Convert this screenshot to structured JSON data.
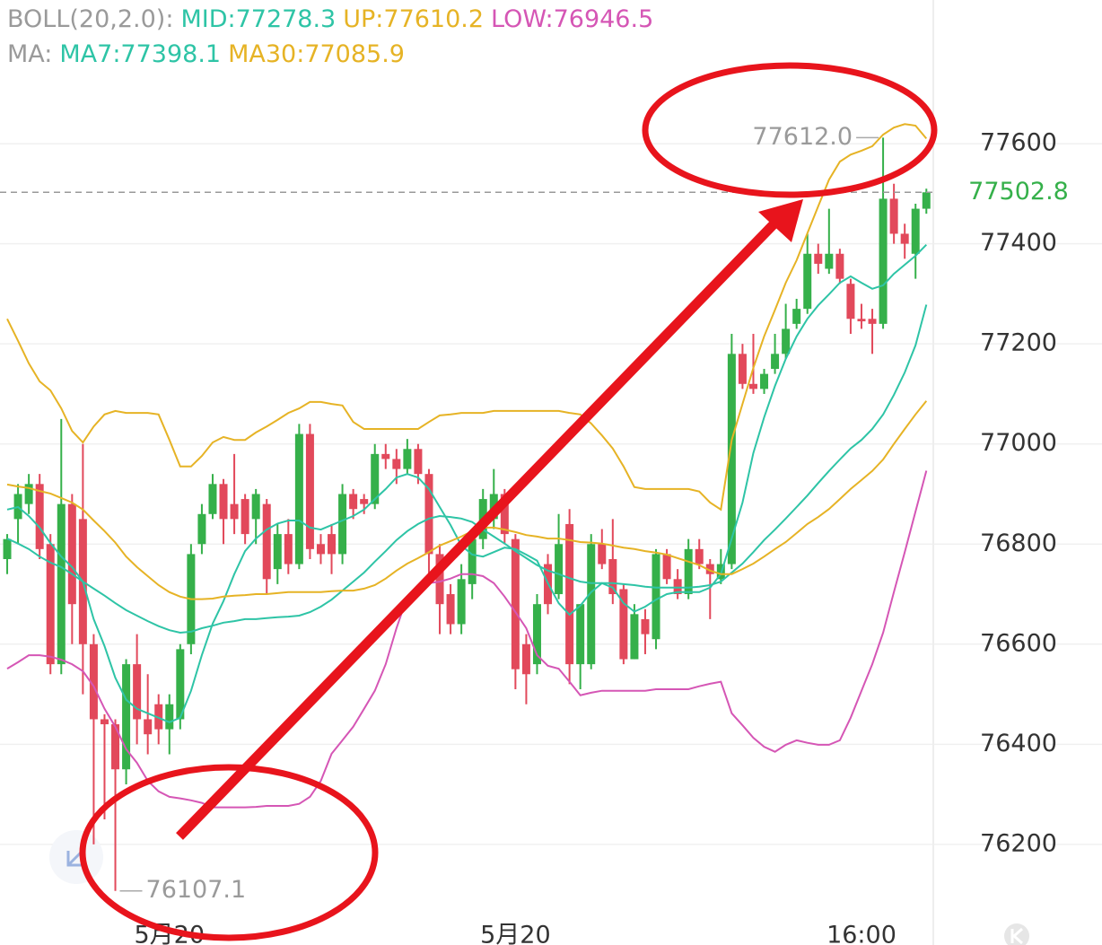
{
  "chart_data": {
    "type": "candlestick",
    "up_color": "#35b04a",
    "down_color": "#e2495b",
    "grid": true,
    "ylim": [
      75999,
      77887
    ],
    "yticks": [
      76200,
      76400,
      76600,
      76800,
      77000,
      77200,
      77400,
      77600
    ],
    "categories": [
      null,
      null,
      null,
      null,
      null,
      null,
      null,
      null,
      null,
      null,
      null,
      null,
      null,
      null,
      null,
      "5月20",
      null,
      null,
      null,
      null,
      null,
      null,
      null,
      null,
      null,
      null,
      null,
      null,
      null,
      null,
      null,
      null,
      null,
      null,
      null,
      null,
      null,
      null,
      null,
      null,
      null,
      null,
      null,
      null,
      null,
      null,
      null,
      "5月20",
      null,
      null,
      null,
      null,
      null,
      null,
      null,
      null,
      null,
      null,
      null,
      null,
      null,
      null,
      null,
      null,
      null,
      null,
      null,
      null,
      null,
      null,
      null,
      null,
      null,
      null,
      null,
      null,
      null,
      null,
      null,
      "16:00",
      null,
      null,
      null,
      null,
      null,
      null
    ],
    "open": [
      76770,
      76850,
      76880,
      76920,
      76800,
      76560,
      76880,
      76850,
      76600,
      76450,
      76440,
      76350,
      76560,
      76450,
      76480,
      76430,
      76450,
      76600,
      76800,
      76860,
      76920,
      76880,
      76890,
      76850,
      76880,
      76750,
      76820,
      76760,
      77020,
      76800,
      76820,
      76780,
      76900,
      76890,
      76880,
      76980,
      76970,
      76950,
      76990,
      76940,
      76780,
      76700,
      76640,
      76720,
      76810,
      76850,
      76900,
      76810,
      76600,
      76560,
      76760,
      76700,
      76840,
      76560,
      76560,
      76800,
      76770,
      76710,
      76570,
      76650,
      76610,
      76780,
      76730,
      76700,
      76790,
      76760,
      76730,
      76760,
      77180,
      77120,
      77110,
      77150,
      77180,
      77240,
      77270,
      77380,
      77350,
      77380,
      77320,
      77250,
      77250,
      77240,
      77490,
      77420,
      77380,
      77470
    ],
    "high": [
      76820,
      76920,
      76940,
      76940,
      76820,
      77050,
      76900,
      77000,
      76620,
      76460,
      76450,
      76570,
      76620,
      76540,
      76500,
      76500,
      76600,
      76800,
      76880,
      76940,
      76930,
      76980,
      76900,
      76910,
      76890,
      76840,
      76850,
      77040,
      77040,
      76820,
      76840,
      76920,
      76910,
      76900,
      77000,
      77000,
      76990,
      77010,
      77000,
      76950,
      76800,
      76720,
      76760,
      76830,
      76910,
      76950,
      76910,
      76820,
      76620,
      76700,
      76780,
      76860,
      76870,
      76680,
      76820,
      76830,
      76850,
      76720,
      76680,
      76670,
      76790,
      76790,
      76750,
      76810,
      76810,
      76770,
      76790,
      77220,
      77200,
      77220,
      77150,
      77220,
      77280,
      77290,
      77420,
      77400,
      77470,
      77390,
      77330,
      77280,
      77270,
      77612,
      77520,
      77440,
      77480,
      77510
    ],
    "low": [
      76740,
      76800,
      76860,
      76770,
      76540,
      76540,
      76600,
      76500,
      76200,
      76250,
      76107.1,
      76320,
      76400,
      76380,
      76400,
      76380,
      76430,
      76580,
      76780,
      76850,
      76800,
      76820,
      76800,
      76800,
      76700,
      76720,
      76740,
      76750,
      76770,
      76760,
      76740,
      76760,
      76850,
      76860,
      76870,
      76950,
      76920,
      76940,
      76920,
      76720,
      76620,
      76620,
      76620,
      76690,
      76790,
      76830,
      76800,
      76510,
      76480,
      76540,
      76660,
      76690,
      76520,
      76510,
      76550,
      76750,
      76680,
      76560,
      76570,
      76580,
      76590,
      76720,
      76690,
      76690,
      76750,
      76650,
      76720,
      76750,
      77110,
      77100,
      77100,
      77140,
      77170,
      77230,
      77260,
      77340,
      77340,
      77320,
      77220,
      77230,
      77180,
      77230,
      77400,
      77370,
      77330,
      77460
    ],
    "close": [
      76810,
      76900,
      76920,
      76790,
      76560,
      76880,
      76680,
      76600,
      76450,
      76440,
      76350,
      76560,
      76450,
      76420,
      76430,
      76480,
      76590,
      76780,
      76860,
      76920,
      76850,
      76850,
      76820,
      76900,
      76730,
      76820,
      76760,
      77020,
      76790,
      76780,
      76780,
      76900,
      76870,
      76880,
      76980,
      76970,
      76950,
      76990,
      76940,
      76780,
      76680,
      76640,
      76730,
      76810,
      76890,
      76900,
      76820,
      76550,
      76540,
      76680,
      76680,
      76800,
      76560,
      76680,
      76800,
      76760,
      76700,
      76570,
      76660,
      76620,
      76780,
      76730,
      76700,
      76790,
      76760,
      76740,
      76760,
      77180,
      77120,
      77110,
      77140,
      77180,
      77230,
      77270,
      77380,
      77360,
      77380,
      77330,
      77250,
      77245,
      77240,
      77490,
      77420,
      77400,
      77470,
      77502.8
    ],
    "annotations": [
      {
        "value": 77612,
        "label": "77612.0"
      },
      {
        "value": 76107.1,
        "label": "76107.1"
      }
    ],
    "indicators": [
      {
        "name": "BOLL(20,2.0):",
        "series": [
          {
            "name": "MID:77278.3",
            "color": "#2ec4a6",
            "values": [
              76811,
              76801,
              76790,
              76775,
              76763,
              76754,
              76740,
              76725,
              76711,
              76697,
              76682,
              76668,
              76657,
              76646,
              76636,
              76628,
              76623,
              76625,
              76632,
              76637,
              76643,
              76646,
              76650,
              76650,
              76652,
              76654,
              76655,
              76657,
              76664,
              76675,
              76689,
              76707,
              76725,
              76743,
              76765,
              76786,
              76808,
              76826,
              76840,
              76851,
              76856,
              76854,
              76851,
              76844,
              76829,
              76815,
              76801,
              76786,
              76772,
              76758,
              76747,
              76740,
              76732,
              76725,
              76722,
              76722,
              76722,
              76720,
              76718,
              76715,
              76713,
              76713,
              76713,
              76713,
              76715,
              76718,
              76725,
              76743,
              76761,
              76784,
              76808,
              76829,
              76851,
              76874,
              76897,
              76922,
              76946,
              76969,
              76991,
              77008,
              77030,
              77059,
              77098,
              77143,
              77197,
              77278.3
            ]
          },
          {
            "name": "UP:77610.2",
            "color": "#e6b325",
            "values": [
              77250,
              77206,
              77161,
              77125,
              77107,
              77071,
              77026,
              77003,
              77035,
              77059,
              77066,
              77062,
              77062,
              77062,
              77059,
              77008,
              76955,
              76955,
              76976,
              77003,
              77014,
              77008,
              77008,
              77023,
              77035,
              77048,
              77062,
              77071,
              77084,
              77084,
              77080,
              77077,
              77044,
              77030,
              77030,
              77030,
              77030,
              77030,
              77030,
              77044,
              77057,
              77059,
              77062,
              77062,
              77062,
              77066,
              77066,
              77066,
              77066,
              77066,
              77066,
              77066,
              77062,
              77059,
              77041,
              77017,
              76991,
              76955,
              76914,
              76910,
              76910,
              76910,
              76910,
              76910,
              76905,
              76883,
              76869,
              77008,
              77080,
              77152,
              77215,
              77268,
              77322,
              77367,
              77421,
              77475,
              77528,
              77564,
              77578,
              77586,
              77595,
              77618,
              77632,
              77639,
              77636,
              77610.2
            ]
          },
          {
            "name": "LOW:76946.5",
            "color": "#d556b5",
            "values": [
              76551,
              76564,
              76578,
              76578,
              76575,
              76569,
              76560,
              76546,
              76516,
              76471,
              76435,
              76390,
              76363,
              76327,
              76306,
              76295,
              76292,
              76288,
              76283,
              76274,
              76274,
              76274,
              76274,
              76275,
              76277,
              76277,
              76277,
              76281,
              76295,
              76327,
              76381,
              76408,
              76435,
              76471,
              76507,
              76560,
              76632,
              76695,
              76718,
              76722,
              76725,
              76731,
              76740,
              76740,
              76736,
              76722,
              76695,
              76664,
              76632,
              76578,
              76557,
              76551,
              76525,
              76498,
              76503,
              76507,
              76507,
              76507,
              76507,
              76507,
              76510,
              76510,
              76510,
              76510,
              76516,
              76521,
              76525,
              76462,
              76438,
              76413,
              76395,
              76385,
              76399,
              76408,
              76403,
              76399,
              76399,
              76408,
              76453,
              76507,
              76560,
              76623,
              76704,
              76784,
              76865,
              76946.5
            ]
          }
        ]
      },
      {
        "name": "MA:",
        "series": [
          {
            "name": "MA7:77398.1",
            "color": "#2ec4a6",
            "values": [
              76869,
              76874,
              76856,
              76833,
              76802,
              76775,
              76754,
              76725,
              76650,
              76596,
              76533,
              76489,
              76471,
              76462,
              76453,
              76444,
              76453,
              76507,
              76578,
              76641,
              76686,
              76740,
              76786,
              76811,
              76829,
              76841,
              76847,
              76847,
              76833,
              76829,
              76838,
              76847,
              76856,
              76869,
              76890,
              76910,
              76933,
              76940,
              76933,
              76910,
              76874,
              76838,
              76797,
              76779,
              76775,
              76784,
              76793,
              76790,
              76779,
              76767,
              76722,
              76682,
              76659,
              76677,
              76704,
              76722,
              76713,
              76682,
              76665,
              76675,
              76689,
              76700,
              76704,
              76704,
              76704,
              76713,
              76740,
              76811,
              76883,
              76982,
              77053,
              77116,
              77170,
              77215,
              77250,
              77277,
              77299,
              77322,
              77335,
              77322,
              77310,
              77317,
              77340,
              77358,
              77376,
              77398.1
            ]
          },
          {
            "name": "MA30:77085.9",
            "color": "#e6b325",
            "values": [
              76919,
              76915,
              76912,
              76906,
              76901,
              76892,
              76883,
              76869,
              76847,
              76826,
              76803,
              76775,
              76754,
              76736,
              76718,
              76704,
              76695,
              76690,
              76690,
              76691,
              76695,
              76697,
              76698,
              76700,
              76700,
              76702,
              76704,
              76704,
              76704,
              76704,
              76706,
              76707,
              76707,
              76711,
              76718,
              76731,
              76747,
              76761,
              76772,
              76784,
              76797,
              76806,
              76815,
              76826,
              76833,
              76833,
              76829,
              76824,
              76818,
              76815,
              76811,
              76811,
              76808,
              76804,
              76803,
              76801,
              76797,
              76793,
              76790,
              76786,
              76783,
              76779,
              76772,
              76765,
              76758,
              76747,
              76740,
              76740,
              76750,
              76761,
              76775,
              76790,
              76804,
              76822,
              76840,
              76854,
              76870,
              76890,
              76910,
              76928,
              76946,
              76969,
              77000,
              77030,
              77059,
              77085.9
            ]
          }
        ]
      }
    ]
  }
}
